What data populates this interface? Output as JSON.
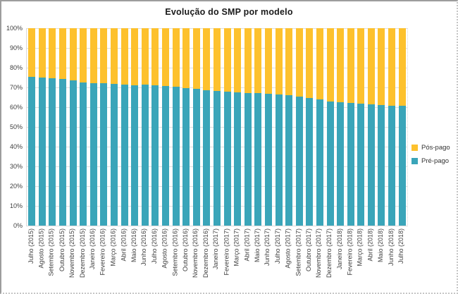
{
  "chart_data": {
    "type": "bar",
    "stacked": true,
    "stack_unit": "percent",
    "title": "Evolução do SMP por modelo",
    "categories": [
      "Julho (2015)",
      "Agosto (2015)",
      "Setembro (2015)",
      "Outubro (2015)",
      "Novembro (2015)",
      "Dezembro (2015)",
      "Janeiro (2016)",
      "Fevereiro (2016)",
      "Março (2016)",
      "Abril (2016)",
      "Maio (2016)",
      "Junho (2016)",
      "Julho (2016)",
      "Agosto (2016)",
      "Setembro (2016)",
      "Outubro (2016)",
      "Novembro (2016)",
      "Dezembro (2016)",
      "Janeiro (2017)",
      "Fevereiro (2017)",
      "Março (2017)",
      "Abril (2017)",
      "Maio (2017)",
      "Junho (2017)",
      "Julho (2017)",
      "Agosto (2017)",
      "Setembro (2017)",
      "Outubro (2017)",
      "Novembro (2017)",
      "Dezembro (2017)",
      "Janeiro (2018)",
      "Fevereiro (2018)",
      "Março (2018)",
      "Abril (2018)",
      "Maio (2018)",
      "Junho (2018)",
      "Julho (2018)"
    ],
    "series": [
      {
        "name": "Pós-pago",
        "color": "#FDC12D",
        "stack_position": "top",
        "values": [
          24.6,
          25.0,
          25.5,
          25.8,
          26.4,
          27.4,
          27.8,
          28.0,
          28.3,
          28.6,
          28.8,
          28.7,
          28.9,
          29.4,
          29.8,
          30.2,
          30.7,
          31.3,
          31.7,
          32.1,
          32.5,
          32.8,
          33.0,
          33.3,
          33.7,
          34.1,
          34.6,
          35.2,
          35.9,
          37.2,
          37.6,
          37.8,
          38.2,
          38.7,
          39.0,
          39.2,
          39.4
        ]
      },
      {
        "name": "Pré-pago",
        "color": "#3AA5B9",
        "stack_position": "bottom",
        "values": [
          75.4,
          75.0,
          74.5,
          74.2,
          73.6,
          72.6,
          72.2,
          72.0,
          71.7,
          71.4,
          71.2,
          71.3,
          71.1,
          70.6,
          70.2,
          69.8,
          69.3,
          68.7,
          68.3,
          67.9,
          67.5,
          67.2,
          67.0,
          66.7,
          66.3,
          65.9,
          65.4,
          64.8,
          64.1,
          62.8,
          62.4,
          62.2,
          61.8,
          61.3,
          61.0,
          60.8,
          60.6
        ]
      }
    ],
    "y_ticks": [
      "100%",
      "90%",
      "80%",
      "70%",
      "60%",
      "50%",
      "40%",
      "30%",
      "20%",
      "10%",
      "0%"
    ],
    "ylim": [
      0,
      100
    ],
    "xlabel": "",
    "ylabel": "",
    "grid": true,
    "grid_color": "#dcdcdc",
    "legend_position": "right"
  }
}
